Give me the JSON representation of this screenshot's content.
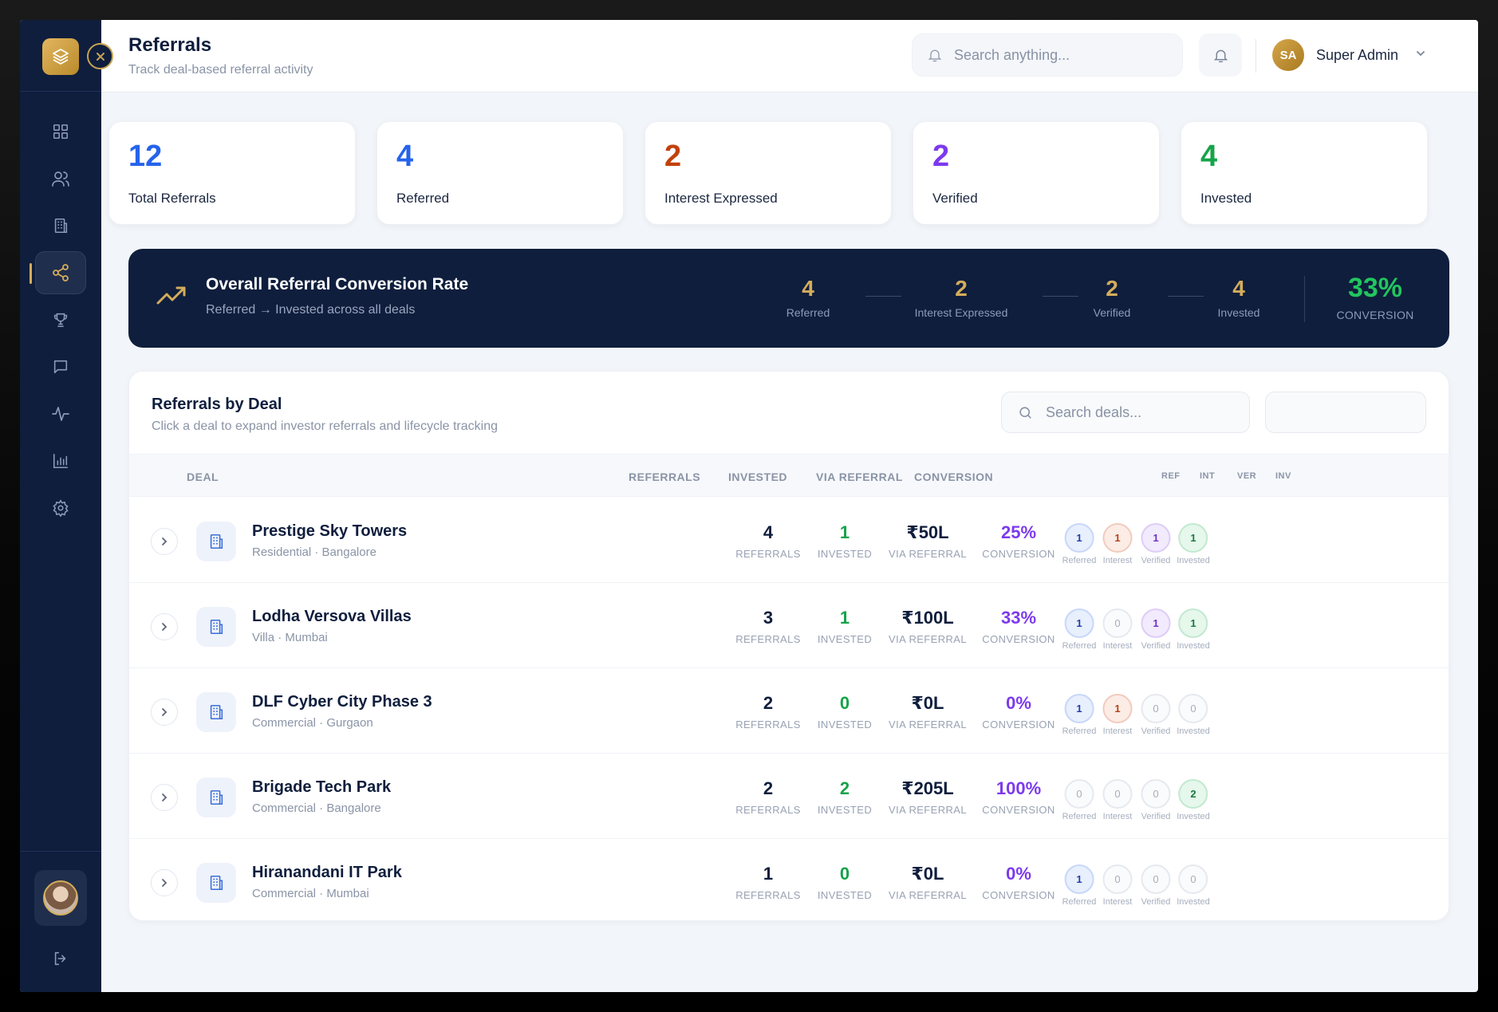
{
  "header": {
    "title": "Referrals",
    "subtitle": "Track deal-based referral activity",
    "search_placeholder": "Search anything...",
    "user_initials": "SA",
    "user_name": "Super Admin"
  },
  "stats": [
    {
      "value": "12",
      "label": "Total Referrals",
      "color": "#2563eb"
    },
    {
      "value": "4",
      "label": "Referred",
      "color": "#2563eb"
    },
    {
      "value": "2",
      "label": "Interest Expressed",
      "color": "#c2410c"
    },
    {
      "value": "2",
      "label": "Verified",
      "color": "#7c3aed"
    },
    {
      "value": "4",
      "label": "Invested",
      "color": "#16a34a"
    }
  ],
  "banner": {
    "title": "Overall Referral Conversion Rate",
    "subtitle": "Referred → Invested across all deals",
    "stages": [
      {
        "value": "4",
        "label": "Referred"
      },
      {
        "value": "2",
        "label": "Interest Expressed"
      },
      {
        "value": "2",
        "label": "Verified"
      },
      {
        "value": "4",
        "label": "Invested"
      }
    ],
    "conversion_value": "33%",
    "conversion_label": "CONVERSION"
  },
  "table": {
    "title": "Referrals by Deal",
    "subtitle": "Click a deal to expand investor referrals and lifecycle tracking",
    "search_placeholder": "Search deals...",
    "columns": {
      "deal": "DEAL",
      "referrals": "REFERRALS",
      "invested": "INVESTED",
      "via_referral": "VIA REFERRAL",
      "conversion": "CONVERSION",
      "ref": "REF",
      "int": "INT",
      "ver": "VER",
      "inv": "INV"
    },
    "cell_labels": {
      "referrals": "REFERRALS",
      "invested": "INVESTED",
      "via_referral": "VIA REFERRAL",
      "conversion": "CONVERSION",
      "ref": "Referred",
      "int": "Interest",
      "ver": "Verified",
      "inv": "Invested"
    },
    "rows": [
      {
        "name": "Prestige Sky Towers",
        "meta": "Residential · Bangalore",
        "referrals": "4",
        "invested": "1",
        "via": "₹50L",
        "conversion": "25%",
        "ref": "1",
        "int": "1",
        "ver": "1",
        "inv": "1"
      },
      {
        "name": "Lodha Versova Villas",
        "meta": "Villa · Mumbai",
        "referrals": "3",
        "invested": "1",
        "via": "₹100L",
        "conversion": "33%",
        "ref": "1",
        "int": "0",
        "ver": "1",
        "inv": "1"
      },
      {
        "name": "DLF Cyber City Phase 3",
        "meta": "Commercial · Gurgaon",
        "referrals": "2",
        "invested": "0",
        "via": "₹0L",
        "conversion": "0%",
        "ref": "1",
        "int": "1",
        "ver": "0",
        "inv": "0"
      },
      {
        "name": "Brigade Tech Park",
        "meta": "Commercial · Bangalore",
        "referrals": "2",
        "invested": "2",
        "via": "₹205L",
        "conversion": "100%",
        "ref": "0",
        "int": "0",
        "ver": "0",
        "inv": "2"
      },
      {
        "name": "Hiranandani IT Park",
        "meta": "Commercial · Mumbai",
        "referrals": "1",
        "invested": "0",
        "via": "₹0L",
        "conversion": "0%",
        "ref": "1",
        "int": "0",
        "ver": "0",
        "inv": "0"
      }
    ]
  },
  "sidebar": {
    "items": [
      {
        "icon": "dashboard-icon"
      },
      {
        "icon": "users-icon"
      },
      {
        "icon": "building-icon"
      },
      {
        "icon": "share-icon",
        "active": true
      },
      {
        "icon": "trophy-icon"
      },
      {
        "icon": "chat-icon"
      },
      {
        "icon": "activity-icon"
      },
      {
        "icon": "bar-chart-icon"
      },
      {
        "icon": "settings-icon"
      }
    ]
  },
  "colors": {
    "navy": "#0f1e3d",
    "gold": "#d4ad5b",
    "green": "#16a34a",
    "purple": "#7c3aed"
  }
}
